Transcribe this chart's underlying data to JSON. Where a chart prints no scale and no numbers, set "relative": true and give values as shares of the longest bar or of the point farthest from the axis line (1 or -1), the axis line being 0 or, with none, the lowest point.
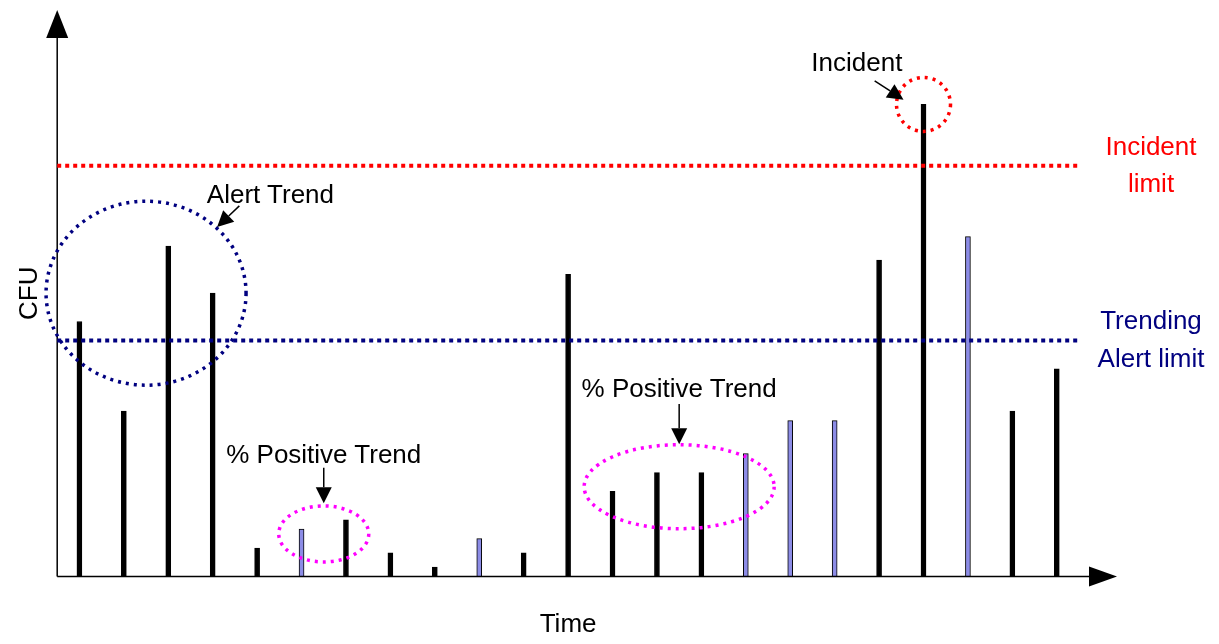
{
  "chart_data": {
    "type": "bar",
    "relative": true,
    "xlabel": "Time",
    "ylabel": "CFU",
    "legend": false,
    "grid": false,
    "categories": [
      null,
      null,
      null,
      null,
      null,
      null,
      null,
      null,
      null,
      null,
      null,
      null,
      null,
      null,
      null,
      null,
      null,
      null,
      null,
      null,
      null,
      null,
      null
    ],
    "values": [
      0.54,
      0.35,
      0.7,
      0.6,
      0.06,
      0.1,
      0.12,
      0.05,
      0.02,
      0.08,
      0.05,
      0.64,
      0.18,
      0.22,
      0.22,
      0.26,
      0.33,
      0.33,
      0.67,
      1,
      0.72,
      0.35,
      0.44
    ],
    "colors": [
      "#000000",
      "#000000",
      "#000000",
      "#000000",
      "#000000",
      "#8c8ce6",
      "#000000",
      "#000000",
      "#000000",
      "#8c8ce6",
      "#000000",
      "#000000",
      "#000000",
      "#000000",
      "#000000",
      "#8c8ce6",
      "#8c8ce6",
      "#8c8ce6",
      "#000000",
      "#000000",
      "#8c8ce6",
      "#000000",
      "#000000"
    ],
    "ref_lines": [
      {
        "axis": "y",
        "value": 0.87,
        "label": "Incident limit",
        "color": "#ff0000",
        "line_style": "dotted"
      },
      {
        "axis": "y",
        "value": 0.5,
        "label": "Trending Alert limit",
        "color": "#000080",
        "line_style": "dotted"
      }
    ],
    "annotations": [
      "Incident",
      "Alert Trend",
      "% Positive Trend",
      "% Positive Trend"
    ]
  }
}
